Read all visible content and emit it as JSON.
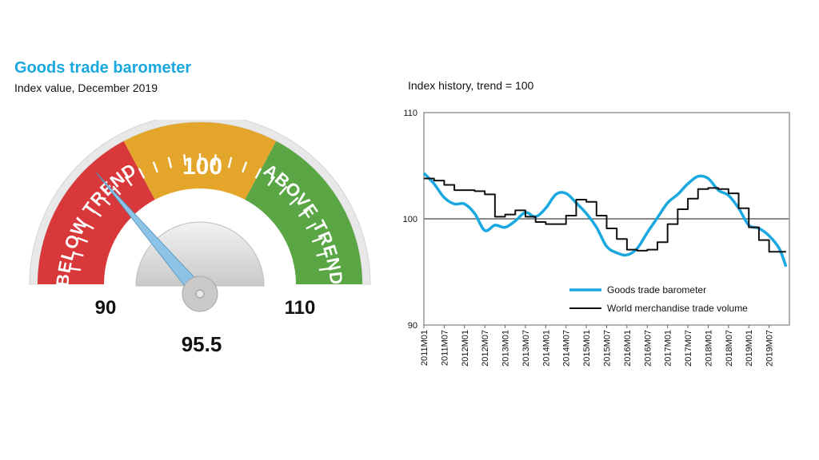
{
  "left": {
    "title": "Goods trade barometer",
    "subtitle": "Index value, December 2019"
  },
  "gauge": {
    "value": "95.5",
    "value_num": 95.5,
    "min_label": "90",
    "max_label": "110",
    "mid_label": "100",
    "below_label": "BELOW TREND",
    "above_label": "ABOVE TREND",
    "min": 90,
    "max": 110,
    "colors": {
      "below": "#d9383a",
      "trend": "#e4a52b",
      "above": "#5aa544",
      "needle": "#8dc3e6",
      "rim": "#e6e6e6"
    }
  },
  "chart_data": {
    "type": "line",
    "title": "Index history, trend = 100",
    "ylim": [
      90,
      110
    ],
    "yticks": [
      "90",
      "100",
      "110"
    ],
    "reference_line": 100,
    "x_tick_labels": [
      "2011M01",
      "2011M07",
      "2012M01",
      "2012M07",
      "2013M01",
      "2013M07",
      "2014M01",
      "2014M07",
      "2015M01",
      "2015M07",
      "2016M01",
      "2016M07",
      "2017M01",
      "2017M07",
      "2018M01",
      "2018M07",
      "2019M01",
      "2019M07"
    ],
    "legend_placement": "bottom-right",
    "series": [
      {
        "name": "Goods trade barometer",
        "color": "#1aa8e0",
        "style": "smooth",
        "points": [
          [
            "2011-01",
            104.3
          ],
          [
            "2011-04",
            103.3
          ],
          [
            "2011-07",
            102.0
          ],
          [
            "2011-10",
            101.4
          ],
          [
            "2012-01",
            101.4
          ],
          [
            "2012-04",
            100.5
          ],
          [
            "2012-07",
            98.9
          ],
          [
            "2012-10",
            99.4
          ],
          [
            "2013-01",
            99.2
          ],
          [
            "2013-04",
            99.8
          ],
          [
            "2013-07",
            100.6
          ],
          [
            "2013-10",
            100.2
          ],
          [
            "2014-01",
            101.0
          ],
          [
            "2014-04",
            102.3
          ],
          [
            "2014-07",
            102.4
          ],
          [
            "2014-10",
            101.5
          ],
          [
            "2015-01",
            100.5
          ],
          [
            "2015-04",
            99.2
          ],
          [
            "2015-07",
            97.4
          ],
          [
            "2015-10",
            96.8
          ],
          [
            "2016-01",
            96.6
          ],
          [
            "2016-04",
            97.2
          ],
          [
            "2016-07",
            98.7
          ],
          [
            "2016-10",
            100.1
          ],
          [
            "2017-01",
            101.5
          ],
          [
            "2017-04",
            102.3
          ],
          [
            "2017-07",
            103.3
          ],
          [
            "2017-10",
            104.0
          ],
          [
            "2018-01",
            103.8
          ],
          [
            "2018-04",
            102.7
          ],
          [
            "2018-07",
            102.2
          ],
          [
            "2018-10",
            101.0
          ],
          [
            "2019-01",
            99.4
          ],
          [
            "2019-04",
            99.1
          ],
          [
            "2019-07",
            98.4
          ],
          [
            "2019-10",
            97.2
          ],
          [
            "2019-12",
            95.5
          ]
        ]
      },
      {
        "name": "World merchandise trade volume",
        "color": "#111111",
        "style": "step",
        "points": [
          [
            "2011-01",
            103.8
          ],
          [
            "2011-04",
            103.6
          ],
          [
            "2011-07",
            103.2
          ],
          [
            "2011-10",
            102.7
          ],
          [
            "2012-04",
            102.6
          ],
          [
            "2012-07",
            102.3
          ],
          [
            "2012-10",
            100.2
          ],
          [
            "2013-01",
            100.4
          ],
          [
            "2013-04",
            100.8
          ],
          [
            "2013-07",
            100.2
          ],
          [
            "2013-10",
            99.7
          ],
          [
            "2014-01",
            99.5
          ],
          [
            "2014-04",
            99.5
          ],
          [
            "2014-07",
            100.3
          ],
          [
            "2014-10",
            101.8
          ],
          [
            "2015-01",
            101.6
          ],
          [
            "2015-04",
            100.3
          ],
          [
            "2015-07",
            99.1
          ],
          [
            "2015-10",
            98.1
          ],
          [
            "2016-01",
            97.1
          ],
          [
            "2016-04",
            97.0
          ],
          [
            "2016-07",
            97.1
          ],
          [
            "2016-10",
            97.8
          ],
          [
            "2017-01",
            99.5
          ],
          [
            "2017-04",
            100.9
          ],
          [
            "2017-07",
            101.9
          ],
          [
            "2017-10",
            102.8
          ],
          [
            "2018-01",
            102.9
          ],
          [
            "2018-04",
            102.8
          ],
          [
            "2018-07",
            102.4
          ],
          [
            "2018-10",
            101.0
          ],
          [
            "2019-01",
            99.2
          ],
          [
            "2019-04",
            98.0
          ],
          [
            "2019-07",
            96.9
          ],
          [
            "2019-10",
            96.9
          ]
        ]
      }
    ]
  }
}
